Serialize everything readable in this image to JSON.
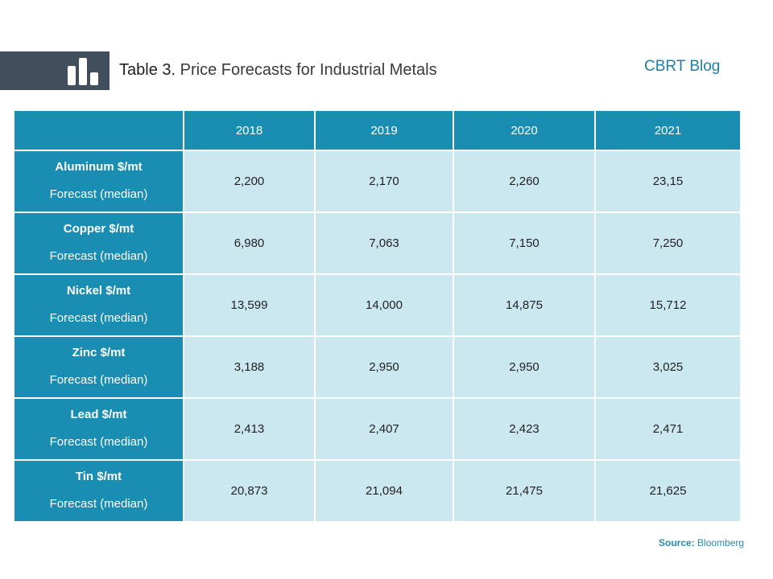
{
  "header": {
    "title_lead": "Table 3.",
    "title_rest": " Price Forecasts for Industrial  Metals",
    "brand": "CBRT Blog",
    "banner_icon": "bar-chart-icon"
  },
  "chart_data": {
    "type": "table",
    "columns": [
      "",
      "2018",
      "2019",
      "2020",
      "2021"
    ],
    "rows": [
      {
        "label": "Aluminum $/mt",
        "sublabel": "Forecast (median)",
        "values": [
          "2,200",
          "2,170",
          "2,260",
          "23,15"
        ]
      },
      {
        "label": "Copper $/mt",
        "sublabel": "Forecast (median)",
        "values": [
          "6,980",
          "7,063",
          "7,150",
          "7,250"
        ]
      },
      {
        "label": "Nickel $/mt",
        "sublabel": "Forecast (median)",
        "values": [
          "13,599",
          "14,000",
          "14,875",
          "15,712"
        ]
      },
      {
        "label": "Zinc $/mt",
        "sublabel": "Forecast (median)",
        "values": [
          "3,188",
          "2,950",
          "2,950",
          "3,025"
        ]
      },
      {
        "label": "Lead $/mt",
        "sublabel": "Forecast (median)",
        "values": [
          "2,413",
          "2,407",
          "2,423",
          "2,471"
        ]
      },
      {
        "label": "Tin $/mt",
        "sublabel": "Forecast (median)",
        "values": [
          "20,873",
          "21,094",
          "21,475",
          "21,625"
        ]
      }
    ]
  },
  "footer": {
    "source_label": "Source:",
    "source_value": " Bloomberg"
  },
  "colors": {
    "header_fill": "#1a8db3",
    "cell_fill": "#cbe8f1",
    "banner": "#414f5c",
    "brand": "#1d7fa6"
  }
}
